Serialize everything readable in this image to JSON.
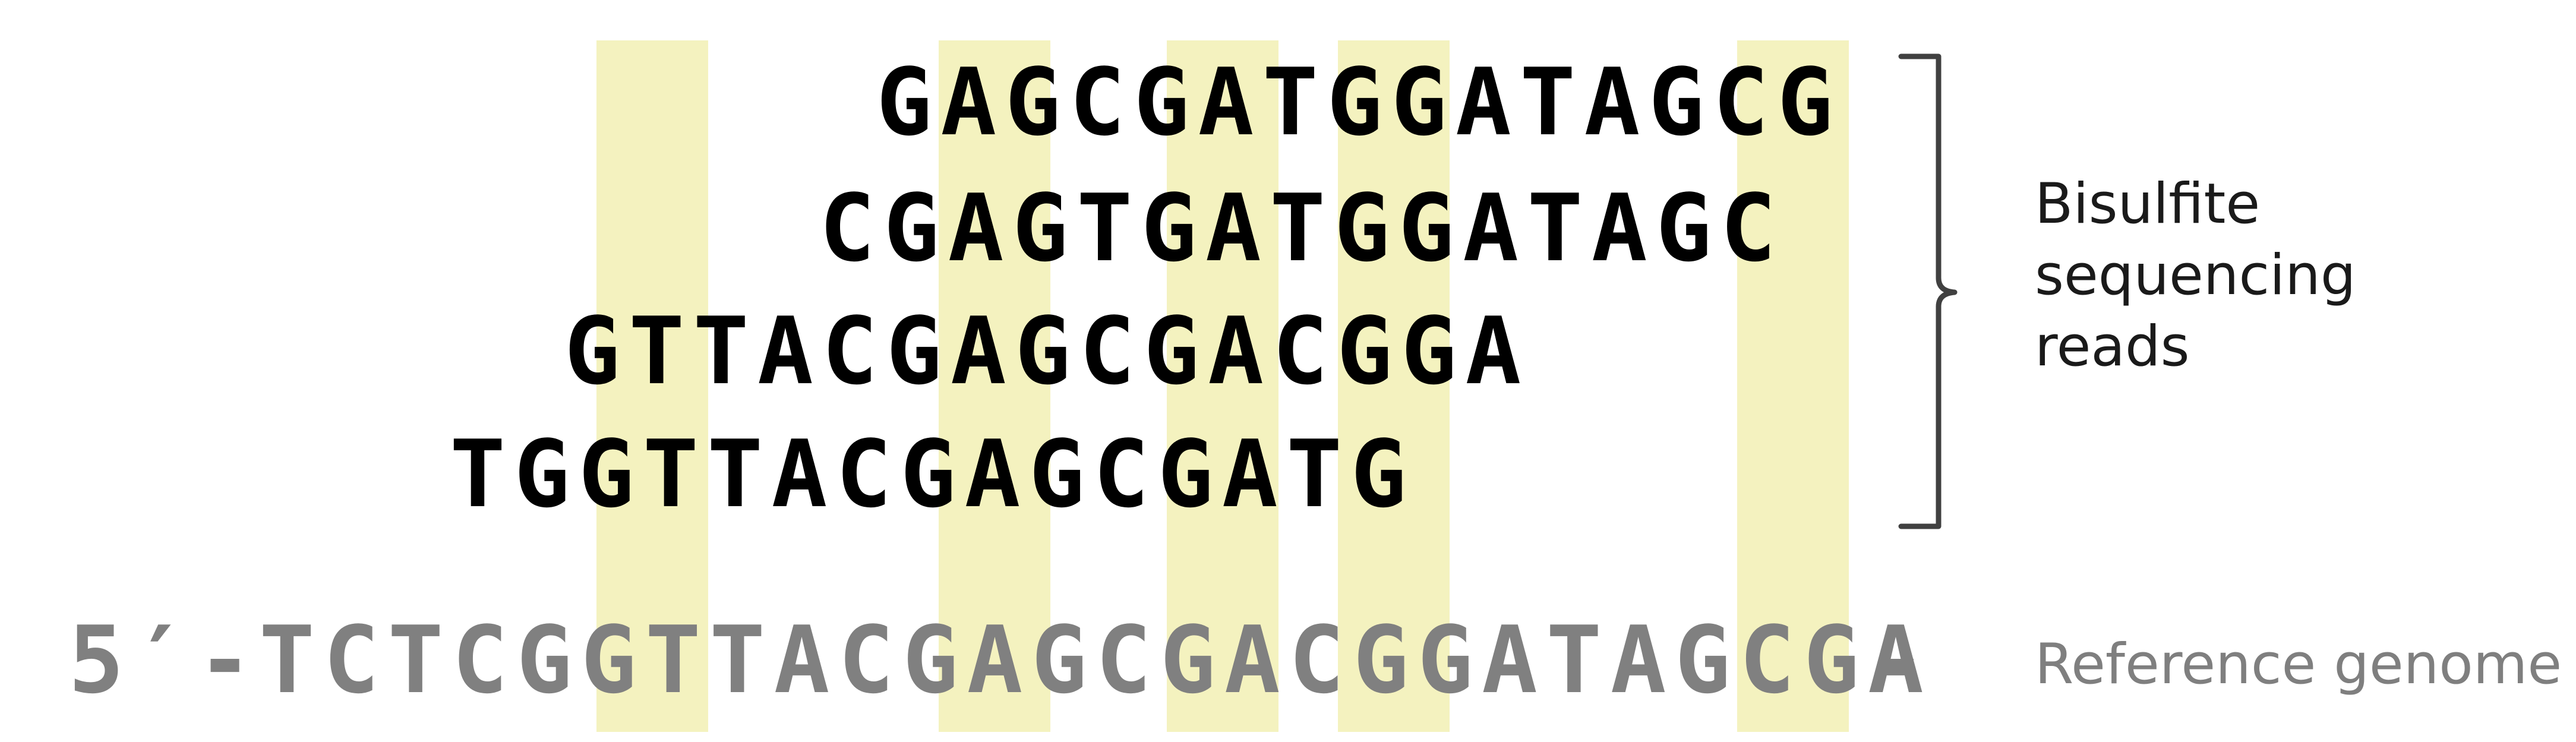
{
  "reads": [
    {
      "sequence": "GAGCGATGGATAGCG",
      "offset": 14
    },
    {
      "sequence": "CGAGTGATGGATAGC",
      "offset": 13
    },
    {
      "sequence": "GTTACGAGCGACGGA",
      "offset": 9
    },
    {
      "sequence": "TGGTTACGAGCGATG",
      "offset": 7
    }
  ],
  "reference": {
    "prefix": "5′-",
    "sequence": "TCTCGGTTACGAGCGACGGATAGCGA",
    "suffix": "-"
  },
  "cpg_positions": [
    7,
    13,
    17,
    20,
    27
  ],
  "labels": {
    "reads": [
      "Bisulfite",
      "sequencing",
      "reads"
    ],
    "reference": "Reference genome"
  },
  "colors": {
    "highlight": "#f2f0b4",
    "read_text": "#000000",
    "reference_text": "#808080",
    "brace": "#404040"
  }
}
